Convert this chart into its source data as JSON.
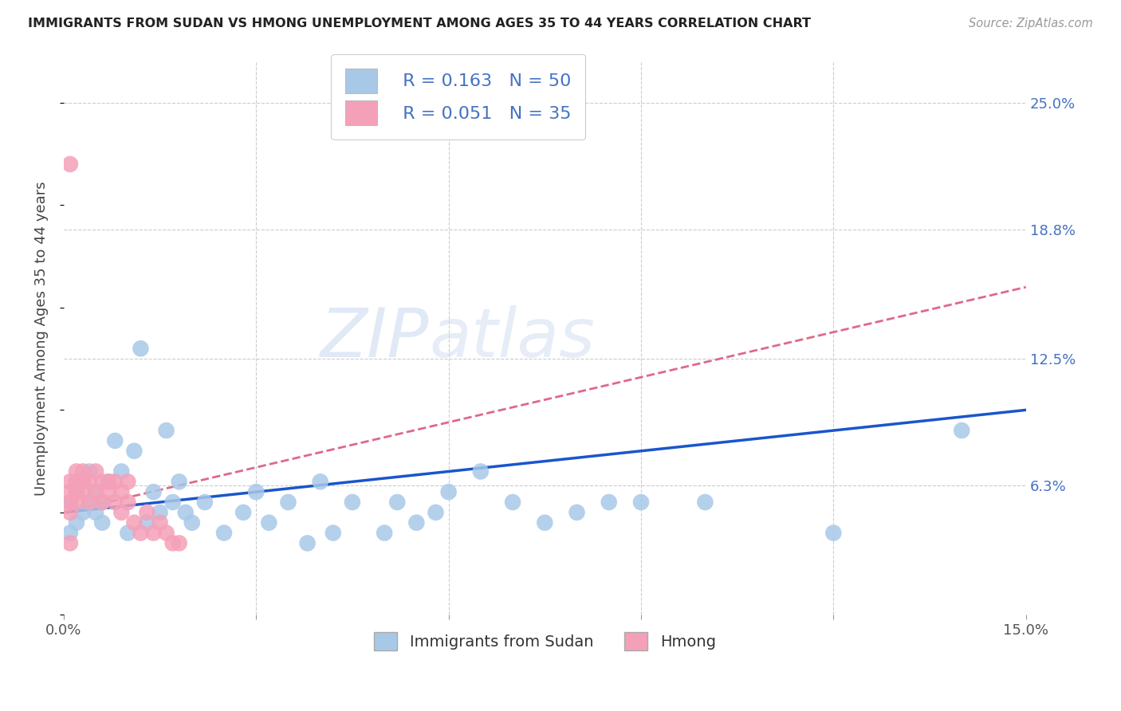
{
  "title": "IMMIGRANTS FROM SUDAN VS HMONG UNEMPLOYMENT AMONG AGES 35 TO 44 YEARS CORRELATION CHART",
  "source": "Source: ZipAtlas.com",
  "ylabel": "Unemployment Among Ages 35 to 44 years",
  "xlim": [
    0.0,
    0.15
  ],
  "ylim": [
    0.0,
    0.27
  ],
  "background_color": "#ffffff",
  "sudan_color": "#a8c8e8",
  "hmong_color": "#f4a0b8",
  "sudan_line_color": "#1a55cc",
  "hmong_line_color": "#e06888",
  "grid_color": "#cccccc",
  "legend_sudan_label": "  R = 0.163   N = 50",
  "legend_hmong_label": "  R = 0.051   N = 35",
  "bottom_legend_sudan": "Immigrants from Sudan",
  "bottom_legend_hmong": "Hmong",
  "sudan_x": [
    0.001,
    0.001,
    0.002,
    0.002,
    0.003,
    0.003,
    0.004,
    0.004,
    0.005,
    0.005,
    0.006,
    0.006,
    0.007,
    0.008,
    0.009,
    0.01,
    0.011,
    0.012,
    0.013,
    0.014,
    0.015,
    0.016,
    0.017,
    0.018,
    0.019,
    0.02,
    0.022,
    0.025,
    0.028,
    0.03,
    0.032,
    0.035,
    0.038,
    0.04,
    0.042,
    0.045,
    0.05,
    0.052,
    0.055,
    0.058,
    0.06,
    0.065,
    0.07,
    0.075,
    0.08,
    0.085,
    0.09,
    0.1,
    0.12,
    0.14
  ],
  "sudan_y": [
    0.04,
    0.055,
    0.045,
    0.06,
    0.05,
    0.065,
    0.055,
    0.07,
    0.05,
    0.06,
    0.055,
    0.045,
    0.065,
    0.085,
    0.07,
    0.04,
    0.08,
    0.13,
    0.045,
    0.06,
    0.05,
    0.09,
    0.055,
    0.065,
    0.05,
    0.045,
    0.055,
    0.04,
    0.05,
    0.06,
    0.045,
    0.055,
    0.035,
    0.065,
    0.04,
    0.055,
    0.04,
    0.055,
    0.045,
    0.05,
    0.06,
    0.07,
    0.055,
    0.045,
    0.05,
    0.055,
    0.055,
    0.055,
    0.04,
    0.09
  ],
  "hmong_x": [
    0.001,
    0.001,
    0.001,
    0.001,
    0.001,
    0.002,
    0.002,
    0.002,
    0.002,
    0.003,
    0.003,
    0.003,
    0.004,
    0.004,
    0.005,
    0.005,
    0.006,
    0.006,
    0.007,
    0.007,
    0.008,
    0.008,
    0.009,
    0.009,
    0.01,
    0.01,
    0.011,
    0.012,
    0.013,
    0.014,
    0.015,
    0.016,
    0.017,
    0.018,
    0.001
  ],
  "hmong_y": [
    0.05,
    0.055,
    0.06,
    0.065,
    0.22,
    0.06,
    0.065,
    0.07,
    0.055,
    0.06,
    0.065,
    0.07,
    0.055,
    0.065,
    0.06,
    0.07,
    0.055,
    0.065,
    0.06,
    0.065,
    0.055,
    0.065,
    0.05,
    0.06,
    0.055,
    0.065,
    0.045,
    0.04,
    0.05,
    0.04,
    0.045,
    0.04,
    0.035,
    0.035,
    0.035
  ]
}
